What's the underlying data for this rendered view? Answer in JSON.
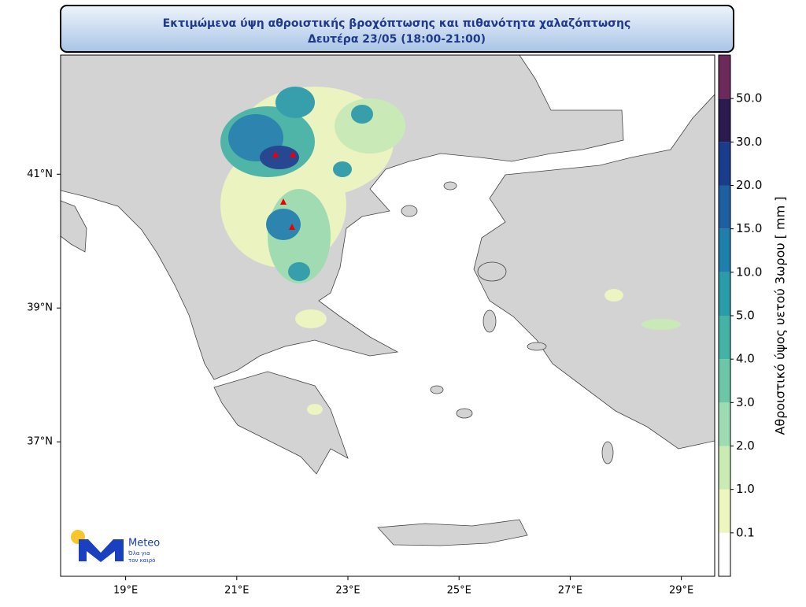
{
  "header": {
    "title_line1": "Εκτιμώμενα ύψη αθροιστικής βροχόπτωσης και πιθανότητα χαλαζόπτωσης",
    "title_line2": "Δευτέρα 23/05 (18:00-21:00)"
  },
  "map": {
    "lonlim": [
      17.83,
      29.6
    ],
    "latlim": [
      34.99,
      42.78
    ],
    "lon_ticks": [
      {
        "value": 19,
        "label": "19°E"
      },
      {
        "value": 21,
        "label": "21°E"
      },
      {
        "value": 23,
        "label": "23°E"
      },
      {
        "value": 25,
        "label": "25°E"
      },
      {
        "value": 27,
        "label": "27°E"
      },
      {
        "value": 29,
        "label": "29°E"
      }
    ],
    "lat_ticks": [
      {
        "value": 37,
        "label": "37°N"
      },
      {
        "value": 39,
        "label": "39°N"
      },
      {
        "value": 41,
        "label": "41°N"
      }
    ]
  },
  "colorbar": {
    "title": "Αθροιστικό ύψος υετού 3ωρου [ mm ]",
    "levels": [
      {
        "value": 0.1,
        "label": "0.1"
      },
      {
        "value": 1,
        "label": "1.0"
      },
      {
        "value": 2,
        "label": "2.0"
      },
      {
        "value": 3,
        "label": "3.0"
      },
      {
        "value": 4,
        "label": "4.0"
      },
      {
        "value": 5,
        "label": "5.0"
      },
      {
        "value": 10,
        "label": "10.0"
      },
      {
        "value": 15,
        "label": "15.0"
      },
      {
        "value": 20,
        "label": "20.0"
      },
      {
        "value": 30,
        "label": "30.0"
      },
      {
        "value": 50,
        "label": "50.0"
      }
    ],
    "colors": [
      "#ffffff",
      "#eef6c0",
      "#c9ebb4",
      "#9cdcb0",
      "#6bc7a8",
      "#44b3a6",
      "#2a9ba8",
      "#1f7fac",
      "#1d5fa0",
      "#1a3c8c",
      "#2a1a4e",
      "#6b2a5a"
    ]
  },
  "logo": {
    "name": "Meteo",
    "tagline1": "Όλα για",
    "tagline2": "τον καιρό"
  }
}
